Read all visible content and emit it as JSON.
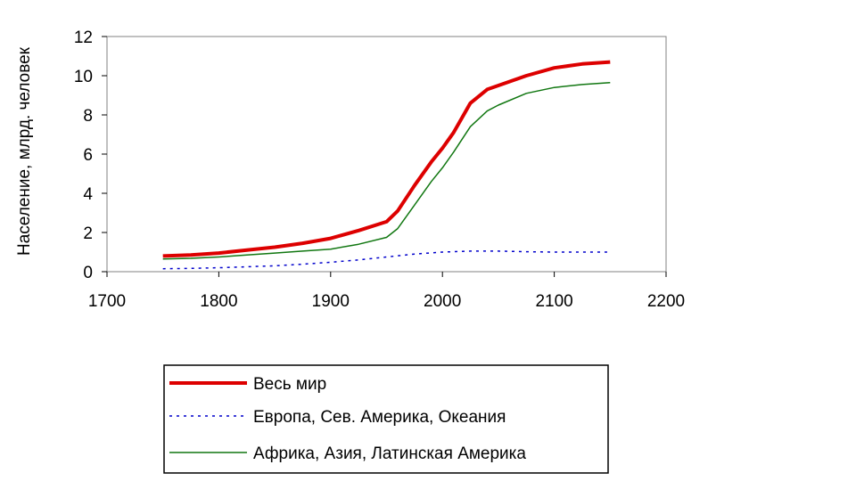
{
  "chart_data": {
    "type": "line",
    "title": "",
    "xlabel": "",
    "ylabel": "Население, млрд. человек",
    "xlim": [
      1700,
      2200
    ],
    "ylim": [
      0,
      12
    ],
    "x_ticks": [
      1700,
      1800,
      1900,
      2000,
      2100,
      2200
    ],
    "y_ticks": [
      0,
      2,
      4,
      6,
      8,
      10,
      12
    ],
    "x_tick_labels": [
      "1700",
      "1800",
      "1900",
      "2000",
      "2100",
      "2200"
    ],
    "y_tick_labels": [
      "0",
      "2",
      "4",
      "6",
      "8",
      "10",
      "12"
    ],
    "grid": false,
    "legend_position": "bottom",
    "series": [
      {
        "name": "Весь мир",
        "color": "#dd0000",
        "style": "solid-thick",
        "x": [
          1750,
          1775,
          1800,
          1825,
          1850,
          1875,
          1900,
          1925,
          1950,
          1960,
          1975,
          1990,
          2000,
          2010,
          2025,
          2040,
          2050,
          2075,
          2100,
          2125,
          2150
        ],
        "y": [
          0.8,
          0.85,
          0.95,
          1.1,
          1.25,
          1.45,
          1.7,
          2.1,
          2.55,
          3.1,
          4.4,
          5.6,
          6.3,
          7.1,
          8.6,
          9.3,
          9.5,
          10.0,
          10.4,
          10.6,
          10.7
        ]
      },
      {
        "name": "Европа, Сев. Америка, Океания",
        "color": "#0000cc",
        "style": "dotted",
        "x": [
          1750,
          1775,
          1800,
          1825,
          1850,
          1875,
          1900,
          1925,
          1950,
          1975,
          2000,
          2025,
          2050,
          2075,
          2100,
          2125,
          2150
        ],
        "y": [
          0.15,
          0.17,
          0.2,
          0.25,
          0.3,
          0.38,
          0.48,
          0.6,
          0.75,
          0.9,
          1.0,
          1.05,
          1.05,
          1.02,
          1.0,
          1.0,
          1.0
        ]
      },
      {
        "name": "Африка, Азия, Латинская Америка",
        "color": "#117711",
        "style": "solid-thin",
        "x": [
          1750,
          1775,
          1800,
          1825,
          1850,
          1875,
          1900,
          1925,
          1950,
          1960,
          1975,
          1990,
          2000,
          2010,
          2025,
          2040,
          2050,
          2075,
          2100,
          2125,
          2150
        ],
        "y": [
          0.65,
          0.68,
          0.75,
          0.85,
          0.95,
          1.05,
          1.15,
          1.4,
          1.75,
          2.2,
          3.4,
          4.6,
          5.3,
          6.1,
          7.4,
          8.2,
          8.5,
          9.1,
          9.4,
          9.55,
          9.65
        ]
      }
    ]
  }
}
